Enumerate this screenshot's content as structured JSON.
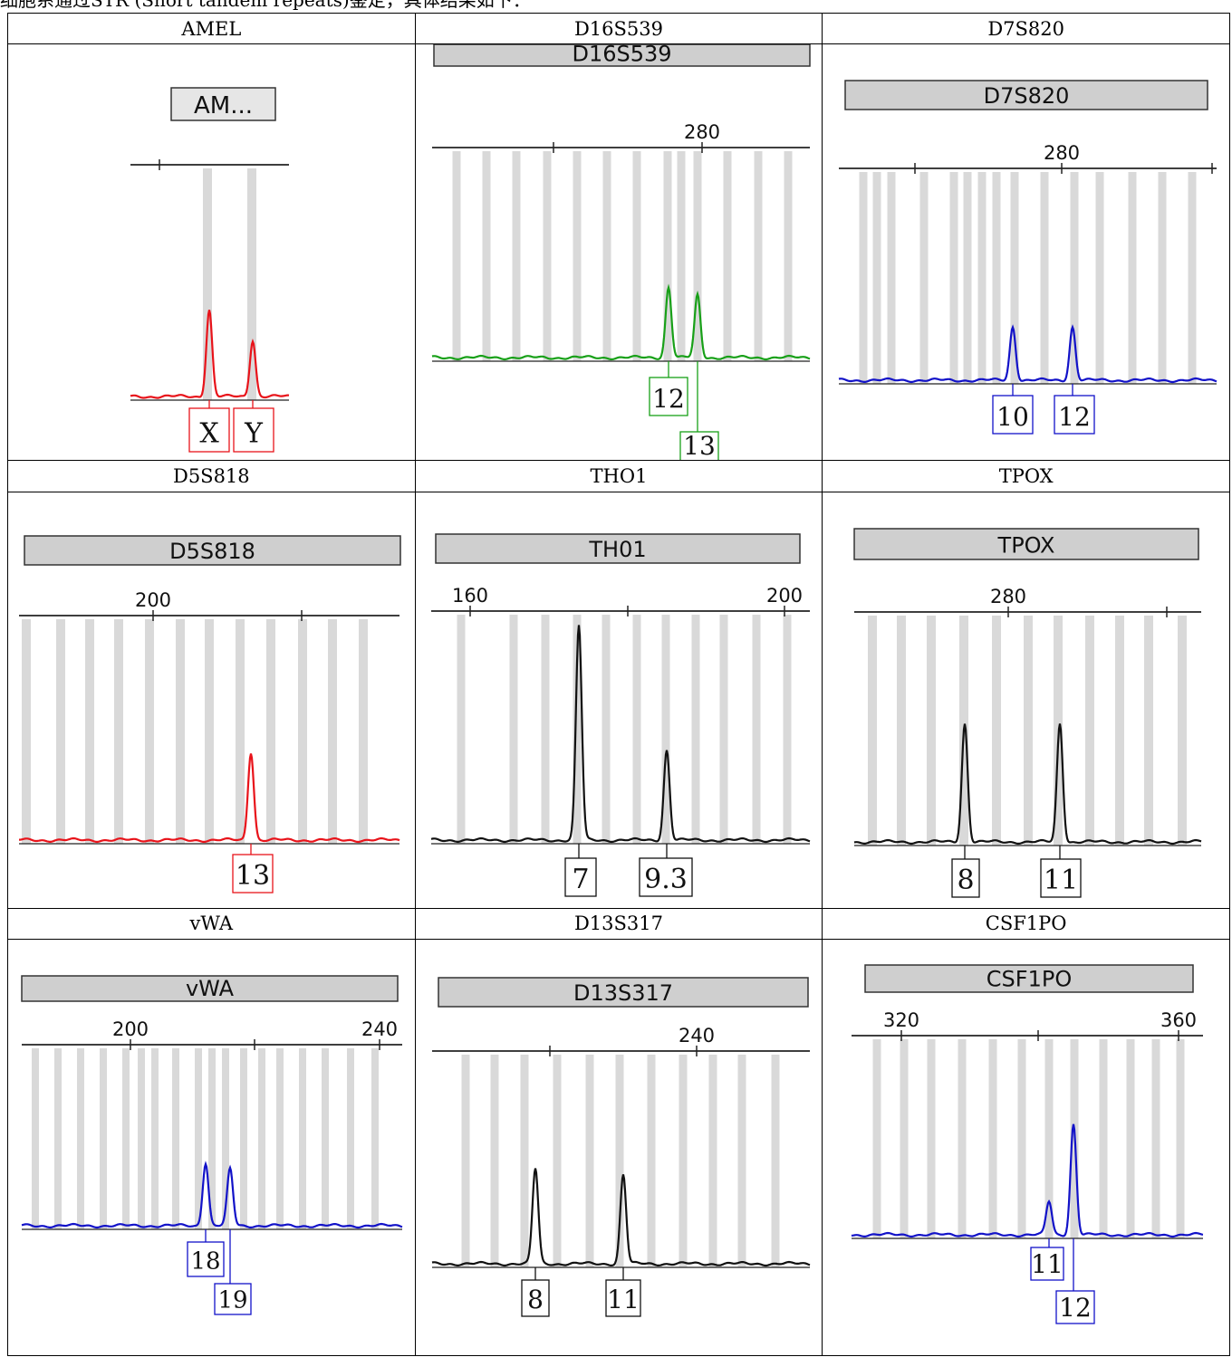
{
  "caption": "细胞系通过STR (Short tandem repeats)鉴定，具体结果如下：",
  "colors": {
    "red": "#e8131a",
    "green": "#18a018",
    "blue": "#1212c8",
    "black": "#111111",
    "bin": "#d9d9d9"
  },
  "chart_data": [
    {
      "type": "line",
      "header": "AMEL",
      "title": "AM...",
      "color": "red",
      "ticks": [],
      "peaks": [
        {
          "allele": "X",
          "height": 0.4
        },
        {
          "allele": "Y",
          "height": 0.26
        }
      ]
    },
    {
      "type": "line",
      "header": "D16S539",
      "title": "D16S539",
      "color": "green",
      "ticks": [
        "280"
      ],
      "peaks": [
        {
          "allele": "12",
          "height": 0.36
        },
        {
          "allele": "13",
          "height": 0.32
        }
      ]
    },
    {
      "type": "line",
      "header": "D7S820",
      "title": "D7S820",
      "color": "blue",
      "ticks": [
        "280"
      ],
      "peaks": [
        {
          "allele": "10",
          "height": 0.27
        },
        {
          "allele": "12",
          "height": 0.27
        }
      ]
    },
    {
      "type": "line",
      "header": "D5S818",
      "title": "D5S818",
      "color": "red",
      "ticks": [
        "200"
      ],
      "peaks": [
        {
          "allele": "13",
          "height": 0.42
        }
      ]
    },
    {
      "type": "line",
      "header": "THO1",
      "title": "TH01",
      "color": "black",
      "ticks": [
        "160",
        "200"
      ],
      "peaks": [
        {
          "allele": "7",
          "height": 1.0
        },
        {
          "allele": "9.3",
          "height": 0.42
        }
      ]
    },
    {
      "type": "line",
      "header": "TPOX",
      "title": "TPOX",
      "color": "black",
      "ticks": [
        "280"
      ],
      "peaks": [
        {
          "allele": "8",
          "height": 0.55
        },
        {
          "allele": "11",
          "height": 0.55
        }
      ]
    },
    {
      "type": "line",
      "header": "vWA",
      "title": "vWA",
      "color": "blue",
      "ticks": [
        "200",
        "240"
      ],
      "peaks": [
        {
          "allele": "18",
          "height": 0.38
        },
        {
          "allele": "19",
          "height": 0.34
        }
      ]
    },
    {
      "type": "line",
      "header": "D13S317",
      "title": "D13S317",
      "color": "black",
      "ticks": [
        "240"
      ],
      "peaks": [
        {
          "allele": "8",
          "height": 0.48
        },
        {
          "allele": "11",
          "height": 0.45
        }
      ]
    },
    {
      "type": "line",
      "header": "CSF1PO",
      "title": "CSF1PO",
      "color": "blue",
      "ticks": [
        "320",
        "360"
      ],
      "peaks": [
        {
          "allele": "11",
          "height": 0.18
        },
        {
          "allele": "12",
          "height": 0.6
        }
      ]
    }
  ]
}
